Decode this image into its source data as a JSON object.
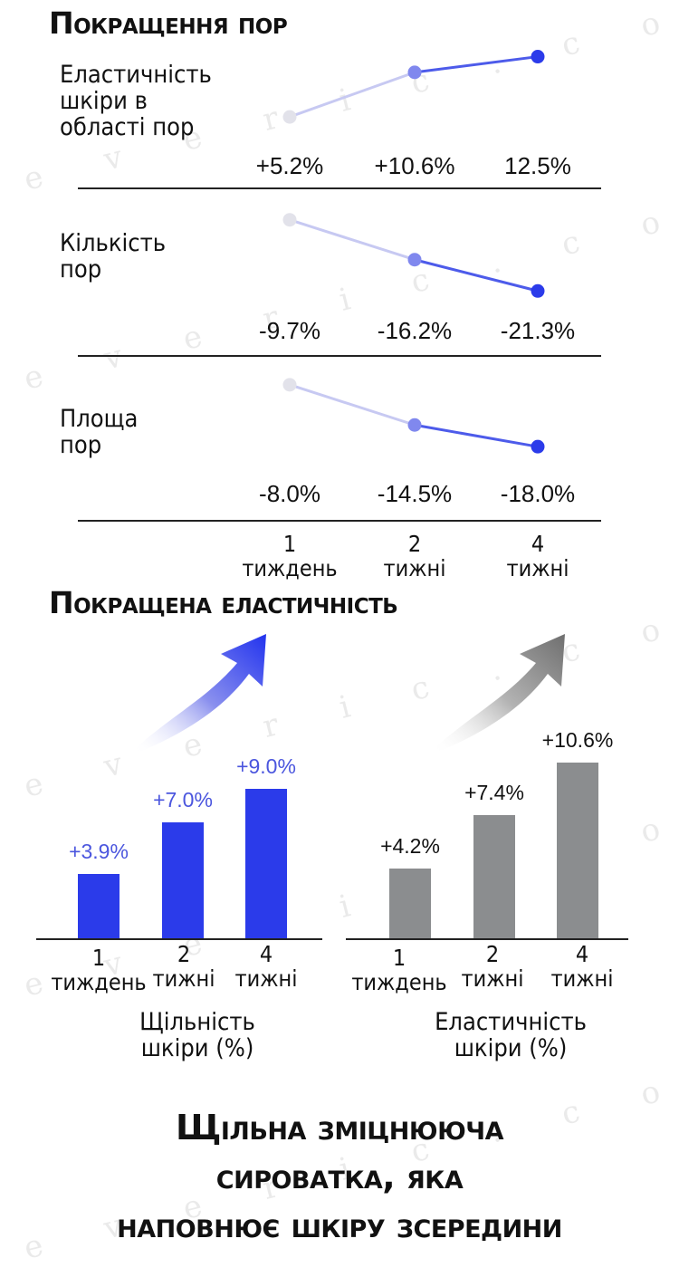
{
  "top_title": "Покращення пор",
  "middle_title": "Покращена еластичність",
  "bottom_title": [
    "Щільна зміцнююча",
    "сироватка, яка",
    "наповнює шкіру зсередини"
  ],
  "watermark": "e v e r i c . c o m . u a",
  "colors": {
    "blue": "#2b3bea",
    "mid_blue": "#8088ee",
    "light": "#e2e2ea",
    "gray": "#8b8d8f"
  },
  "chart_data": [
    {
      "type": "line",
      "title": "Покращення пор",
      "categories": [
        "1 тиждень",
        "2 тижні",
        "4 тижні"
      ],
      "x_labels": [
        [
          "1",
          "тиждень"
        ],
        [
          "2",
          "тижні"
        ],
        [
          "4",
          "тижні"
        ]
      ],
      "series": [
        {
          "name": "Еластичність шкіри в області пор",
          "name_lines": [
            "Еластичність",
            "шкіри в",
            "області пор"
          ],
          "values": [
            5.2,
            10.6,
            12.5
          ],
          "labels": [
            "+5.2%",
            "+10.6%",
            "12.5%"
          ]
        },
        {
          "name": "Кількість пор",
          "name_lines": [
            "Кількість",
            "пор"
          ],
          "values": [
            -9.7,
            -16.2,
            -21.3
          ],
          "labels": [
            "-9.7%",
            "-16.2%",
            "-21.3%"
          ]
        },
        {
          "name": "Площа пор",
          "name_lines": [
            "Площа",
            "пор"
          ],
          "values": [
            -8.0,
            -14.5,
            -18.0
          ],
          "labels": [
            "-8.0%",
            "-14.5%",
            "-18.0%"
          ]
        }
      ]
    },
    {
      "type": "bar",
      "title": "",
      "caption": [
        "Щільність",
        "шкіри (%)"
      ],
      "categories": [
        "1 тиждень",
        "2 тижні",
        "4 тижні"
      ],
      "x_labels": [
        [
          "1",
          "тиждень"
        ],
        [
          "2",
          "тижні"
        ],
        [
          "4",
          "тижні"
        ]
      ],
      "values": [
        3.9,
        7.0,
        9.0
      ],
      "labels": [
        "+3.9%",
        "+7.0%",
        "+9.0%"
      ],
      "color": "#2b3bea"
    },
    {
      "type": "bar",
      "title": "",
      "caption": [
        "Еластичність",
        "шкіри (%)"
      ],
      "categories": [
        "1 тиждень",
        "2 тижні",
        "4 тижні"
      ],
      "x_labels": [
        [
          "1",
          "тиждень"
        ],
        [
          "2",
          "тижні"
        ],
        [
          "4",
          "тижні"
        ]
      ],
      "values": [
        4.2,
        7.4,
        10.6
      ],
      "labels": [
        "+4.2%",
        "+7.4%",
        "+10.6%"
      ],
      "color": "#8b8d8f"
    }
  ]
}
